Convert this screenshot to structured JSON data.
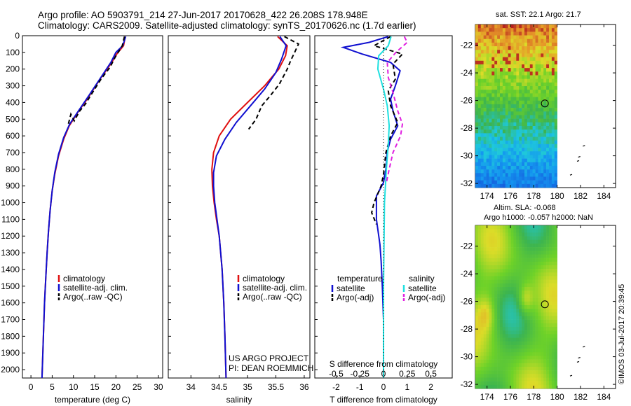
{
  "header": {
    "line1": "Argo profile: AO 5903791_214 27-Jun-2017 20170628_422 26.208S 178.948E",
    "line2": "Climatology: CARS2009. Satellite-adjusted climatology: synTS_20170626.nc (1.7d earlier)"
  },
  "colors": {
    "climatology": "#e01010",
    "satellite": "#1010d0",
    "argo": "#000000",
    "sal_satellite": "#20e0e0",
    "sal_argo": "#e020e0"
  },
  "credit": "©IMOS 03-Jul-2017 20:39:45",
  "project": [
    "US ARGO PROJECT",
    "PI: DEAN ROEMMICH"
  ],
  "map_sst": {
    "title": "sat. SST: 22.1  Argo: 21.7",
    "yticks": [
      "-22",
      "-24",
      "-26",
      "-28",
      "-30",
      "-32"
    ],
    "xticks": [
      "174",
      "176",
      "178",
      "180",
      "182",
      "184"
    ],
    "marker": {
      "lon": 178.948,
      "lat": -26.208
    }
  },
  "map_sla": {
    "title1": "Altim. SLA: -0.068",
    "title2": "Argo h1000: -0.057  h2000: NaN",
    "yticks": [
      "-22",
      "-24",
      "-26",
      "-28",
      "-30",
      "-32"
    ],
    "xticks": [
      "174",
      "176",
      "178",
      "180",
      "182",
      "184"
    ],
    "marker": {
      "lon": 178.948,
      "lat": -26.208
    }
  },
  "chart_data": [
    {
      "type": "line",
      "xlabel": "temperature (deg C)",
      "ylabel": "",
      "xlim": [
        -2,
        31
      ],
      "ylim": [
        2050,
        0
      ],
      "xticks": [
        "0",
        "5",
        "10",
        "15",
        "20",
        "25",
        "30"
      ],
      "yticks": [
        "0",
        "100",
        "200",
        "300",
        "400",
        "500",
        "600",
        "700",
        "800",
        "900",
        "1000",
        "1100",
        "1200",
        "1300",
        "1400",
        "1500",
        "1600",
        "1700",
        "1800",
        "1900",
        "2000"
      ],
      "legend": [
        "climatology",
        "satellite-adj. clim.",
        "Argo(..raw -QC)"
      ],
      "series": [
        {
          "name": "climatology",
          "color": "#e01010",
          "dash": "",
          "points": [
            [
              22.2,
              5
            ],
            [
              21.8,
              60
            ],
            [
              20.2,
              110
            ],
            [
              19.0,
              160
            ],
            [
              16.0,
              270
            ],
            [
              13.5,
              370
            ],
            [
              11.0,
              460
            ],
            [
              9.0,
              540
            ],
            [
              7.7,
              620
            ],
            [
              6.5,
              720
            ],
            [
              5.6,
              830
            ],
            [
              5.0,
              930
            ],
            [
              4.5,
              1050
            ],
            [
              4.1,
              1180
            ],
            [
              3.8,
              1300
            ],
            [
              3.5,
              1450
            ],
            [
              3.2,
              1600
            ],
            [
              3.0,
              1750
            ],
            [
              2.8,
              1900
            ],
            [
              2.6,
              2050
            ]
          ]
        },
        {
          "name": "satellite-adj. clim.",
          "color": "#1010d0",
          "dash": "",
          "points": [
            [
              22.3,
              5
            ],
            [
              21.6,
              60
            ],
            [
              20.0,
              100
            ],
            [
              18.8,
              160
            ],
            [
              16.2,
              260
            ],
            [
              13.6,
              360
            ],
            [
              11.2,
              450
            ],
            [
              9.1,
              530
            ],
            [
              7.7,
              610
            ],
            [
              6.5,
              710
            ],
            [
              5.6,
              820
            ],
            [
              5.0,
              930
            ],
            [
              4.5,
              1050
            ],
            [
              4.1,
              1180
            ],
            [
              3.8,
              1300
            ],
            [
              3.5,
              1450
            ],
            [
              3.2,
              1600
            ],
            [
              3.0,
              1750
            ],
            [
              2.8,
              1900
            ],
            [
              2.6,
              2050
            ]
          ]
        },
        {
          "name": "Argo(..raw -QC)",
          "color": "#000000",
          "dash": "6,4",
          "points": [
            [
              22.0,
              5
            ],
            [
              21.5,
              60
            ],
            [
              19.8,
              130
            ],
            [
              18.6,
              190
            ],
            [
              16.5,
              260
            ],
            [
              14.5,
              340
            ],
            [
              12.8,
              410
            ],
            [
              11.5,
              450
            ],
            [
              10.2,
              510
            ],
            [
              9.4,
              470
            ],
            [
              8.7,
              540
            ]
          ]
        }
      ]
    },
    {
      "type": "line",
      "xlabel": "salinity",
      "ylabel": "",
      "xlim": [
        33.6,
        36.1
      ],
      "ylim": [
        2050,
        0
      ],
      "xticks": [
        "34",
        "34.5",
        "35",
        "35.5",
        "36"
      ],
      "legend": [
        "climatology",
        "satellite-adj. clim.",
        "Argo(..raw -QC)"
      ],
      "series": [
        {
          "name": "climatology",
          "color": "#e01010",
          "dash": "",
          "points": [
            [
              35.53,
              5
            ],
            [
              35.7,
              60
            ],
            [
              35.67,
              120
            ],
            [
              35.55,
              200
            ],
            [
              35.3,
              300
            ],
            [
              35.0,
              400
            ],
            [
              34.7,
              500
            ],
            [
              34.5,
              600
            ],
            [
              34.4,
              700
            ],
            [
              34.37,
              800
            ],
            [
              34.38,
              900
            ],
            [
              34.41,
              1000
            ],
            [
              34.45,
              1100
            ],
            [
              34.5,
              1200
            ],
            [
              34.55,
              1400
            ],
            [
              34.58,
              1600
            ],
            [
              34.6,
              1800
            ],
            [
              34.62,
              2050
            ]
          ]
        },
        {
          "name": "satellite-adj. clim.",
          "color": "#1010d0",
          "dash": "",
          "points": [
            [
              35.57,
              5
            ],
            [
              35.68,
              60
            ],
            [
              35.6,
              140
            ],
            [
              35.5,
              220
            ],
            [
              35.3,
              320
            ],
            [
              35.05,
              420
            ],
            [
              34.8,
              520
            ],
            [
              34.6,
              620
            ],
            [
              34.45,
              720
            ],
            [
              34.4,
              820
            ],
            [
              34.4,
              900
            ],
            [
              34.42,
              1000
            ],
            [
              34.46,
              1100
            ],
            [
              34.5,
              1200
            ],
            [
              34.55,
              1400
            ],
            [
              34.58,
              1600
            ],
            [
              34.6,
              1800
            ],
            [
              34.62,
              2050
            ]
          ]
        },
        {
          "name": "Argo(..raw -QC)",
          "color": "#000000",
          "dash": "6,4",
          "points": [
            [
              35.65,
              5
            ],
            [
              35.9,
              50
            ],
            [
              35.83,
              100
            ],
            [
              35.76,
              150
            ],
            [
              35.7,
              200
            ],
            [
              35.56,
              290
            ],
            [
              35.4,
              360
            ],
            [
              35.25,
              420
            ],
            [
              35.15,
              500
            ],
            [
              35.02,
              560
            ]
          ]
        }
      ]
    },
    {
      "type": "line",
      "xlabel": "T difference from climatology",
      "ylabel": "",
      "title": "S difference from climatology",
      "xlim": [
        -2.9,
        2.9
      ],
      "ylim": [
        2050,
        0
      ],
      "xticks": [
        "-2",
        "-1",
        "0",
        "1",
        "2"
      ],
      "s_ticks": [
        "-0.5",
        "-0.25",
        "0",
        "0.25",
        "0.5"
      ],
      "s_scale": 4,
      "legend_temperature": {
        "heading": "temperature",
        "items": [
          "satellite",
          "Argo(-adj)"
        ]
      },
      "legend_salinity": {
        "heading": "salinity",
        "items": [
          "satellite",
          "Argo(-adj)"
        ]
      },
      "series": [
        {
          "name": "satellite",
          "color": "#1010d0",
          "dash": "",
          "points": [
            [
              0.2,
              5
            ],
            [
              -0.6,
              40
            ],
            [
              -1.7,
              70
            ],
            [
              -0.9,
              110
            ],
            [
              0.3,
              160
            ],
            [
              0.7,
              210
            ],
            [
              0.5,
              300
            ],
            [
              0.3,
              380
            ],
            [
              0.4,
              450
            ],
            [
              0.6,
              540
            ],
            [
              0.3,
              620
            ],
            [
              0.15,
              700
            ],
            [
              0.1,
              800
            ],
            [
              0.0,
              880
            ],
            [
              -0.3,
              960
            ],
            [
              -0.3,
              1100
            ],
            [
              -0.15,
              1250
            ],
            [
              -0.1,
              1350
            ],
            [
              -0.05,
              1500
            ],
            [
              0.0,
              1700
            ],
            [
              0.0,
              2050
            ]
          ]
        },
        {
          "name": "Argo(-adj)",
          "color": "#000000",
          "dash": "6,4",
          "points": [
            [
              0.3,
              5
            ],
            [
              -0.4,
              60
            ],
            [
              0.8,
              110
            ],
            [
              0.4,
              170
            ],
            [
              0.5,
              260
            ],
            [
              0.2,
              330
            ],
            [
              0.3,
              420
            ],
            [
              0.6,
              520
            ],
            [
              0.3,
              600
            ],
            [
              0.1,
              700
            ],
            [
              0.0,
              830
            ],
            [
              -0.1,
              900
            ],
            [
              -0.4,
              1000
            ],
            [
              -0.5,
              1060
            ],
            [
              -0.3,
              1130
            ]
          ]
        },
        {
          "name": "satellite",
          "color": "#20e0e0",
          "dash": "",
          "points": [
            [
              0.08,
              5
            ],
            [
              0.05,
              60
            ],
            [
              -0.05,
              120
            ],
            [
              -0.06,
              200
            ],
            [
              0.0,
              320
            ],
            [
              0.04,
              420
            ],
            [
              0.06,
              540
            ],
            [
              0.05,
              650
            ],
            [
              0.03,
              800
            ],
            [
              0.01,
              1000
            ],
            [
              0.0,
              1500
            ],
            [
              0.0,
              2050
            ]
          ]
        },
        {
          "name": "Argo(-adj)",
          "color": "#e020e0",
          "dash": "6,4",
          "points": [
            [
              0.22,
              5
            ],
            [
              0.25,
              40
            ],
            [
              0.13,
              100
            ],
            [
              0.04,
              160
            ],
            [
              0.05,
              250
            ],
            [
              0.1,
              340
            ],
            [
              0.15,
              450
            ],
            [
              0.2,
              530
            ],
            [
              0.18,
              600
            ],
            [
              0.1,
              700
            ],
            [
              0.06,
              800
            ],
            [
              0.03,
              880
            ]
          ]
        }
      ]
    }
  ]
}
